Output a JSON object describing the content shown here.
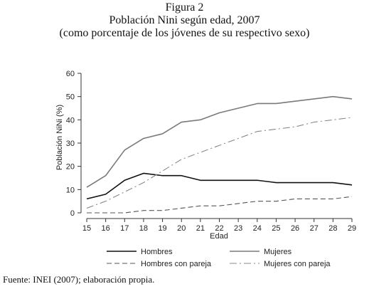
{
  "figure": {
    "label": "Figura 2",
    "title": "Población Nini según edad, 2007",
    "subtitle": "(como porcentaje de los jóvenes de su respectivo sexo)"
  },
  "source": "Fuente: INEI (2007); elaboración propia.",
  "chart_data": {
    "type": "line",
    "xlabel": "Edad",
    "ylabel": "Población NiNi (%)",
    "x": [
      15,
      16,
      17,
      18,
      19,
      20,
      21,
      22,
      23,
      24,
      25,
      26,
      27,
      28,
      29
    ],
    "xlim": [
      15,
      29
    ],
    "ylim": [
      0,
      60
    ],
    "yticks": [
      0,
      10,
      20,
      30,
      40,
      50,
      60
    ],
    "grid": false,
    "legend_position": "bottom",
    "series": [
      {
        "name": "Hombres",
        "style": "solid",
        "color": "#111111",
        "values": [
          6,
          8,
          14,
          17,
          16,
          16,
          14,
          14,
          14,
          14,
          13,
          13,
          13,
          13,
          12
        ]
      },
      {
        "name": "Mujeres",
        "style": "solid",
        "color": "#7a7a7a",
        "values": [
          11,
          16,
          27,
          32,
          34,
          39,
          40,
          43,
          45,
          47,
          47,
          48,
          49,
          50,
          49
        ]
      },
      {
        "name": "Hombres con pareja",
        "style": "dashed",
        "color": "#555555",
        "values": [
          0,
          0,
          0,
          1,
          1,
          2,
          3,
          3,
          4,
          5,
          5,
          6,
          6,
          6,
          7
        ]
      },
      {
        "name": "Mujeres con pareja",
        "style": "dashdot",
        "color": "#888888",
        "values": [
          2,
          5,
          9,
          13,
          18,
          23,
          26,
          29,
          32,
          35,
          36,
          37,
          39,
          40,
          41
        ]
      }
    ]
  }
}
